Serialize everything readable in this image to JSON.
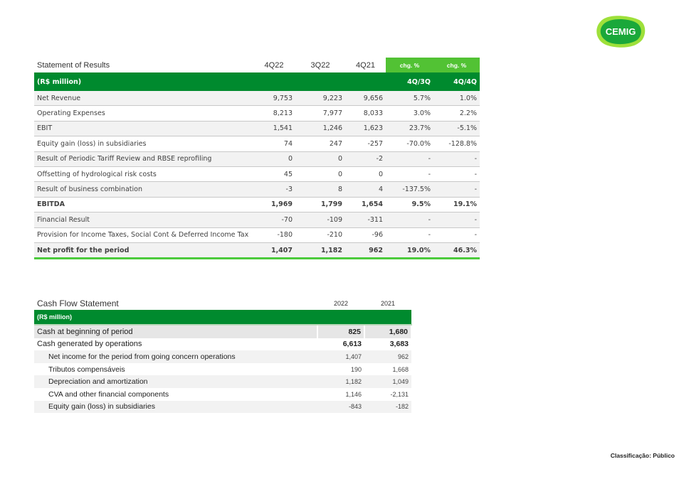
{
  "logo_text": "CEMIG",
  "colors": {
    "dark_green": "#008a2e",
    "light_green": "#52c234"
  },
  "statement_of_results": {
    "title": "Statement of Results",
    "columns": [
      "4Q22",
      "3Q22",
      "4Q21",
      "chg. %",
      "chg. %"
    ],
    "unit": "(R$ million)",
    "sub_columns": [
      "4Q/3Q",
      "4Q/4Q"
    ],
    "rows": [
      {
        "label": "Net Revenue",
        "values": [
          "9,753",
          "9,223",
          "9,656",
          "5.7%",
          "1.0%"
        ]
      },
      {
        "label": "Operating Expenses",
        "values": [
          "8,213",
          "7,977",
          "8,033",
          "3.0%",
          "2.2%"
        ]
      },
      {
        "label": "EBIT",
        "values": [
          "1,541",
          "1,246",
          "1,623",
          "23.7%",
          "-5.1%"
        ]
      },
      {
        "label": "Equity gain (loss) in subsidiaries",
        "values": [
          "74",
          "247",
          "-257",
          "-70.0%",
          "-128.8%"
        ]
      },
      {
        "label": "Result of Periodic Tariff Review and RBSE reprofiling",
        "values": [
          "0",
          "0",
          "-2",
          "-",
          "-"
        ]
      },
      {
        "label": "Offsetting of hydrological risk costs",
        "values": [
          "45",
          "0",
          "0",
          "-",
          "-"
        ]
      },
      {
        "label": "Result of business combination",
        "values": [
          "-3",
          "8",
          "4",
          "-137.5%",
          "-"
        ]
      },
      {
        "label": "EBITDA",
        "values": [
          "1,969",
          "1,799",
          "1,654",
          "9.5%",
          "19.1%"
        ],
        "bold": true
      },
      {
        "label": "Financial Result",
        "values": [
          "-70",
          "-109",
          "-311",
          "-",
          "-"
        ]
      },
      {
        "label": "Provision for Income Taxes, Social Cont & Deferred Income Tax",
        "values": [
          "-180",
          "-210",
          "-96",
          "-",
          "-"
        ]
      },
      {
        "label": "Net profit for the period",
        "values": [
          "1,407",
          "1,182",
          "962",
          "19.0%",
          "46.3%"
        ],
        "bold": true
      }
    ]
  },
  "cash_flow_statement": {
    "title": "Cash Flow Statement",
    "columns": [
      "2022",
      "2021"
    ],
    "unit": "(R$ million)",
    "rows": [
      {
        "label": "Cash at beginning of period",
        "values": [
          "825",
          "1,680"
        ],
        "bold": true
      },
      {
        "label": "Cash generated by operations",
        "values": [
          "6,613",
          "3,683"
        ],
        "bold": true
      },
      {
        "label": "Net income for the period from going concern operations",
        "values": [
          "1,407",
          "962"
        ],
        "indent": true
      },
      {
        "label": "Tributos compensáveis",
        "values": [
          "190",
          "1,668"
        ],
        "indent": true
      },
      {
        "label": "Depreciation and amortization",
        "values": [
          "1,182",
          "1,049"
        ],
        "indent": true
      },
      {
        "label": "CVA and other financial components",
        "values": [
          "1,146",
          "-2,131"
        ],
        "indent": true
      },
      {
        "label": "Equity gain (loss) in subsidiaries",
        "values": [
          "-843",
          "-182"
        ],
        "indent": true
      }
    ]
  },
  "classification": "Classificação: Público"
}
